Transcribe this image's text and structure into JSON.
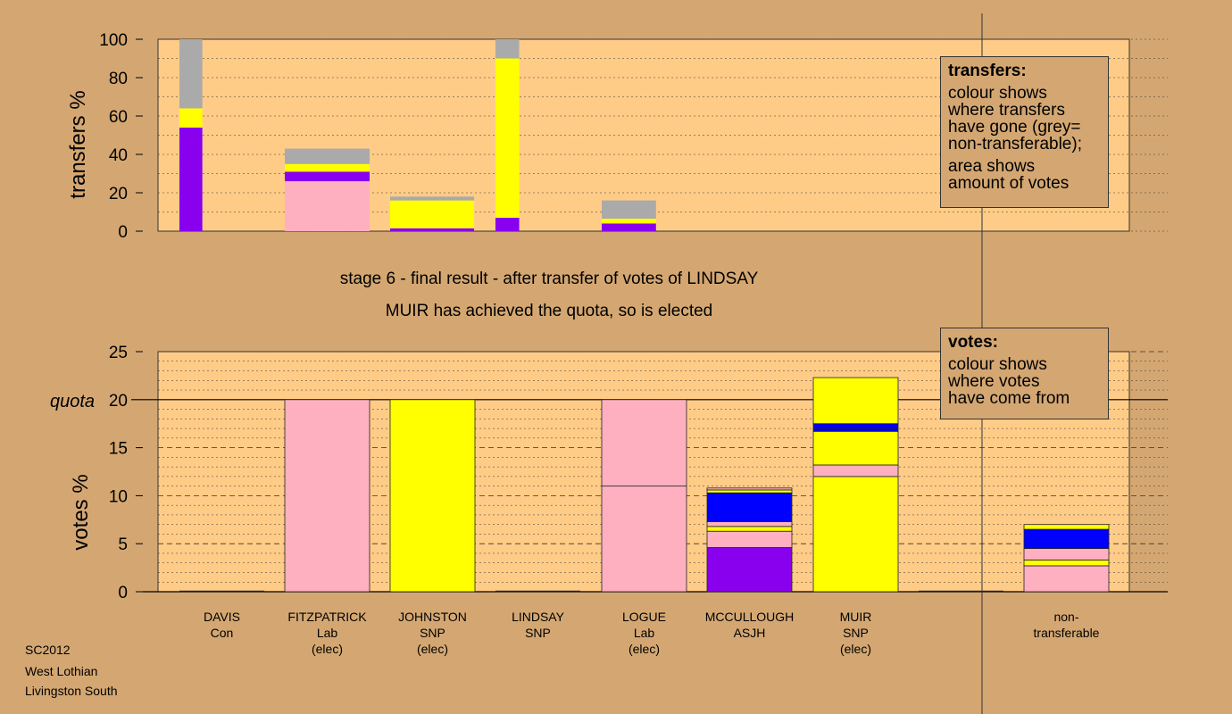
{
  "colors": {
    "background": "#d4a772",
    "plot_bg": "#ffcc88",
    "Lab": "#ffb0c0",
    "SNP": "#ffff00",
    "ASJH": "#8800ee",
    "Other": "#0000ff",
    "non_transferable": "#aaaaaa"
  },
  "captions": {
    "stage": "stage 6 - final result - after transfer of votes of LINDSAY",
    "elected": "MUIR has achieved the quota, so is elected"
  },
  "footer": [
    "SC2012",
    "West Lothian",
    "Livingston South"
  ],
  "legend_transfers": {
    "title": "transfers:",
    "lines1": [
      "colour shows",
      "where transfers",
      "have gone (grey=",
      "non-transferable);"
    ],
    "lines2": [
      "area shows",
      "amount of votes"
    ]
  },
  "legend_votes": {
    "title": "votes:",
    "lines": [
      "colour shows",
      "where votes",
      "have come from"
    ]
  },
  "chart_data": [
    {
      "type": "bar",
      "chart": "transfers",
      "ylabel": "transfers %",
      "ylim": [
        0,
        100
      ],
      "yticks": [
        0,
        20,
        40,
        60,
        80,
        100
      ],
      "bars": [
        {
          "source": "DAVIS",
          "slot": 0,
          "width_share": 0.27,
          "segments": [
            {
              "party": "ASJH",
              "value": 54
            },
            {
              "party": "SNP",
              "value": 10
            },
            {
              "party": "non_transferable",
              "value": 36
            }
          ]
        },
        {
          "source": "FITZPATRICK",
          "slot": 1,
          "width_share": 1.0,
          "segments": [
            {
              "party": "Lab",
              "value": 26
            },
            {
              "party": "ASJH",
              "value": 5
            },
            {
              "party": "SNP",
              "value": 4
            },
            {
              "party": "non_transferable",
              "value": 8
            }
          ]
        },
        {
          "source": "JOHNSTON",
          "slot": 2,
          "width_share": 0.99,
          "segments": [
            {
              "party": "ASJH",
              "value": 1.5
            },
            {
              "party": "SNP",
              "value": 14.5
            },
            {
              "party": "non_transferable",
              "value": 2
            }
          ]
        },
        {
          "source": "LINDSAY",
          "slot": 3,
          "width_share": 0.28,
          "segments": [
            {
              "party": "ASJH",
              "value": 7
            },
            {
              "party": "SNP",
              "value": 83
            },
            {
              "party": "non_transferable",
              "value": 10
            }
          ]
        },
        {
          "source": "LOGUE",
          "slot": 4,
          "width_share": 0.64,
          "segments": [
            {
              "party": "ASJH",
              "value": 4
            },
            {
              "party": "SNP",
              "value": 2.5
            },
            {
              "party": "non_transferable",
              "value": 9.5
            }
          ]
        }
      ]
    },
    {
      "type": "bar",
      "chart": "votes",
      "ylabel": "votes %",
      "ylim": [
        0,
        25
      ],
      "yticks": [
        0,
        5,
        10,
        15,
        20,
        25
      ],
      "quota": 20,
      "quota_label": "quota",
      "candidates": [
        {
          "name": "DAVIS",
          "party": "Con",
          "elected": false,
          "segments": []
        },
        {
          "name": "FITZPATRICK",
          "party": "Lab",
          "elected": true,
          "segments": [
            {
              "party": "Lab",
              "value": 20
            }
          ]
        },
        {
          "name": "JOHNSTON",
          "party": "SNP",
          "elected": true,
          "segments": [
            {
              "party": "SNP",
              "value": 20
            }
          ]
        },
        {
          "name": "LINDSAY",
          "party": "SNP",
          "elected": false,
          "segments": []
        },
        {
          "name": "LOGUE",
          "party": "Lab",
          "elected": true,
          "segments": [
            {
              "party": "Lab",
              "value": 11
            },
            {
              "party": "Lab",
              "value": 9
            }
          ]
        },
        {
          "name": "MCCULLOUGH",
          "party": "ASJH",
          "elected": false,
          "segments": [
            {
              "party": "ASJH",
              "value": 4.6
            },
            {
              "party": "Lab",
              "value": 1.7
            },
            {
              "party": "SNP",
              "value": 0.5
            },
            {
              "party": "Lab",
              "value": 0.5
            },
            {
              "party": "Other",
              "value": 3.0
            },
            {
              "party": "SNP",
              "value": 0.3
            },
            {
              "party": "Lab",
              "value": 0.2
            }
          ]
        },
        {
          "name": "MUIR",
          "party": "SNP",
          "elected": true,
          "segments": [
            {
              "party": "SNP",
              "value": 12.0
            },
            {
              "party": "Lab",
              "value": 1.2
            },
            {
              "party": "SNP",
              "value": 3.5
            },
            {
              "party": "Other",
              "value": 0.3
            },
            {
              "party": "Other",
              "value": 0.5
            },
            {
              "party": "SNP",
              "value": 4.8
            }
          ]
        }
      ],
      "non_transferable": {
        "label_lines": [
          "non-",
          "transferable"
        ],
        "segments": [
          {
            "party": "Lab",
            "value": 2.7
          },
          {
            "party": "SNP",
            "value": 0.6
          },
          {
            "party": "Lab",
            "value": 1.2
          },
          {
            "party": "Other",
            "value": 2.0
          },
          {
            "party": "SNP",
            "value": 0.5
          }
        ]
      },
      "elected_label": "(elec)"
    }
  ]
}
